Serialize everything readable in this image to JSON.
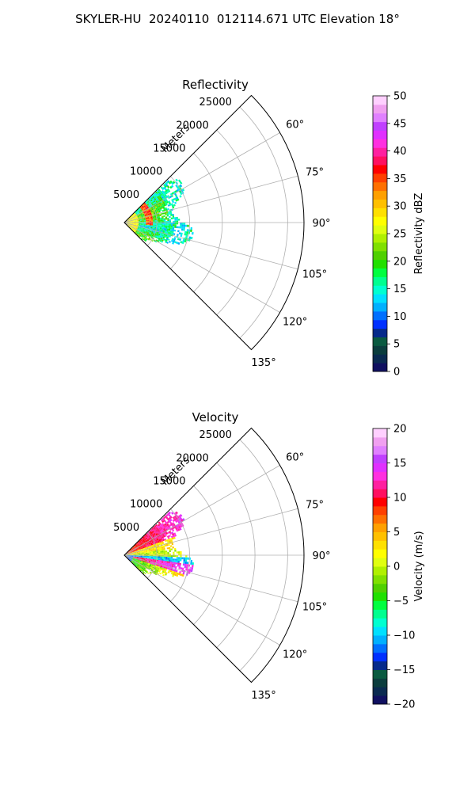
{
  "figure": {
    "suptitle": "SKYLER-HU  20240110  012114.671 UTC Elevation 18°"
  },
  "chart_data": [
    {
      "type": "heatmap",
      "projection": "polar-sector",
      "title": "Reflectivity",
      "r_axis_label": "Meters",
      "r_ticks": [
        5000,
        10000,
        15000,
        20000,
        25000
      ],
      "r_tick_labels": [
        "5000",
        "10000",
        "15000",
        "20000",
        "25000"
      ],
      "theta_ticks_deg": [
        60,
        75,
        90,
        105,
        120,
        135
      ],
      "theta_tick_labels": [
        "60°",
        "75°",
        "90°",
        "105°",
        "120°",
        "135°"
      ],
      "theta_range_deg": [
        45,
        135
      ],
      "r_max": 27500,
      "data_extent_r": 11000,
      "grid": true,
      "colorbar": {
        "label": "Reflectivity dBZ",
        "vmin": 0,
        "vmax": 50,
        "ticks": [
          0,
          5,
          10,
          15,
          20,
          25,
          30,
          35,
          40,
          45,
          50
        ],
        "tick_labels": [
          "0",
          "5",
          "10",
          "15",
          "20",
          "25",
          "30",
          "35",
          "40",
          "45",
          "50"
        ],
        "colors": [
          "#101060",
          "#0a2a50",
          "#0b3d3d",
          "#0a5a40",
          "#062a8a",
          "#0030ff",
          "#0070ff",
          "#00b0ff",
          "#00e0ff",
          "#00ffd0",
          "#00ff90",
          "#00ff40",
          "#20e000",
          "#50d000",
          "#80e000",
          "#b0f000",
          "#e0ff10",
          "#ffff00",
          "#ffe000",
          "#ffc000",
          "#ffa000",
          "#ff7000",
          "#ff4000",
          "#ff0000",
          "#ff1060",
          "#ff20a0",
          "#ff30e0",
          "#e030ff",
          "#c040ff",
          "#e080ff",
          "#f0a0f0",
          "#ffd0ff"
        ]
      }
    },
    {
      "type": "heatmap",
      "projection": "polar-sector",
      "title": "Velocity",
      "r_axis_label": "Meters",
      "r_ticks": [
        5000,
        10000,
        15000,
        20000,
        25000
      ],
      "r_tick_labels": [
        "5000",
        "10000",
        "15000",
        "20000",
        "25000"
      ],
      "theta_ticks_deg": [
        60,
        75,
        90,
        105,
        120,
        135
      ],
      "theta_tick_labels": [
        "60°",
        "75°",
        "90°",
        "105°",
        "120°",
        "135°"
      ],
      "theta_range_deg": [
        45,
        135
      ],
      "r_max": 27500,
      "data_extent_r": 11000,
      "grid": true,
      "colorbar": {
        "label": "Velocity (m/s)",
        "vmin": -20,
        "vmax": 20,
        "ticks": [
          -20,
          -15,
          -10,
          -5,
          0,
          5,
          10,
          15,
          20
        ],
        "tick_labels": [
          "−20",
          "−15",
          "−10",
          "−5",
          "0",
          "5",
          "10",
          "15",
          "20"
        ],
        "colors": [
          "#101060",
          "#0a2a50",
          "#0b3d3d",
          "#0a5a40",
          "#062a8a",
          "#0030ff",
          "#0070ff",
          "#00b0ff",
          "#00e0ff",
          "#00ffd0",
          "#00ff90",
          "#00ff40",
          "#20e000",
          "#50d000",
          "#80e000",
          "#b0f000",
          "#e0ff10",
          "#ffff00",
          "#ffe000",
          "#ffc000",
          "#ffa000",
          "#ff7000",
          "#ff4000",
          "#ff0000",
          "#ff1060",
          "#ff20a0",
          "#ff30e0",
          "#e030ff",
          "#c040ff",
          "#e080ff",
          "#f0a0f0",
          "#ffd0ff"
        ]
      }
    }
  ]
}
